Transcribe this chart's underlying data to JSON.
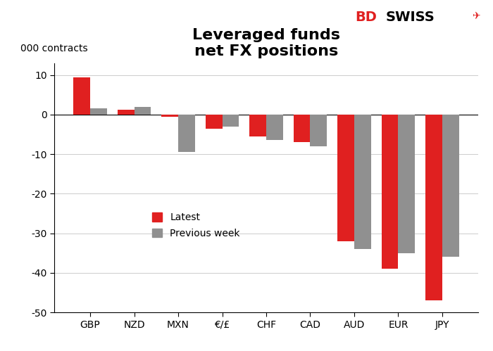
{
  "title": "Leveraged funds\nnet FX positions",
  "ylabel": "000 contracts",
  "categories": [
    "GBP",
    "NZD",
    "MXN",
    "€/£",
    "CHF",
    "CAD",
    "AUD",
    "EUR",
    "JPY"
  ],
  "latest": [
    9.5,
    1.2,
    -0.5,
    -3.5,
    -5.5,
    -7.0,
    -32.0,
    -39.0,
    -47.0
  ],
  "previous_week": [
    1.5,
    2.0,
    -9.5,
    -3.0,
    -6.5,
    -8.0,
    -34.0,
    -35.0,
    -36.0
  ],
  "latest_color": "#e02020",
  "previous_color": "#909090",
  "ylim": [
    -50,
    13
  ],
  "yticks": [
    -50,
    -40,
    -30,
    -20,
    -10,
    0,
    10
  ],
  "background_color": "#ffffff",
  "legend_labels": [
    "Latest",
    "Previous week"
  ],
  "bar_width": 0.38,
  "title_fontsize": 16,
  "ylabel_fontsize": 10,
  "tick_fontsize": 10
}
